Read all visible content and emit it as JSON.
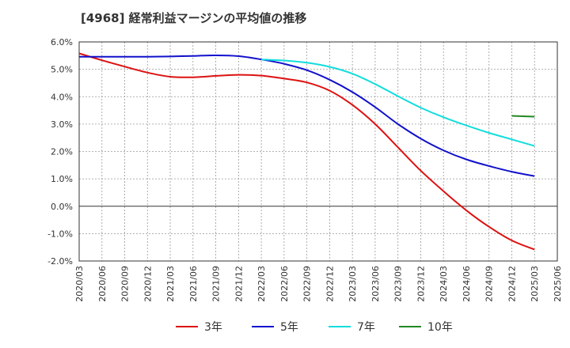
{
  "chart_data": {
    "type": "line",
    "title": "[4968]  経常利益マージンの平均値の推移",
    "xlabel": "",
    "ylabel": "",
    "ylim": [
      -2.0,
      6.0
    ],
    "y_ticks": [
      "6.0%",
      "5.0%",
      "4.0%",
      "3.0%",
      "2.0%",
      "1.0%",
      "0.0%",
      "-1.0%",
      "-2.0%"
    ],
    "y_tick_values": [
      6,
      5,
      4,
      3,
      2,
      1,
      0,
      -1,
      -2
    ],
    "x_ticks": [
      "2020/03",
      "2020/06",
      "2020/09",
      "2020/12",
      "2021/03",
      "2021/06",
      "2021/09",
      "2021/12",
      "2022/03",
      "2022/06",
      "2022/09",
      "2022/12",
      "2023/03",
      "2023/06",
      "2023/09",
      "2023/12",
      "2024/03",
      "2024/06",
      "2024/09",
      "2024/12",
      "2025/03",
      "2025/06"
    ],
    "grid": true,
    "legend_position": "bottom",
    "series": [
      {
        "name": "3年",
        "color": "#dd1111",
        "x": [
          "2020/03",
          "2020/06",
          "2020/09",
          "2020/12",
          "2021/03",
          "2021/06",
          "2021/09",
          "2021/12",
          "2022/03",
          "2022/06",
          "2022/09",
          "2022/12",
          "2023/03",
          "2023/06",
          "2023/09",
          "2023/12",
          "2024/03",
          "2024/06",
          "2024/09",
          "2024/12",
          "2025/03"
        ],
        "values": [
          5.58,
          5.33,
          5.1,
          4.88,
          4.73,
          4.71,
          4.76,
          4.8,
          4.77,
          4.66,
          4.52,
          4.22,
          3.7,
          3.0,
          2.15,
          1.3,
          0.55,
          -0.15,
          -0.75,
          -1.25,
          -1.58
        ]
      },
      {
        "name": "5年",
        "color": "#1111cc",
        "x": [
          "2020/03",
          "2020/06",
          "2020/09",
          "2020/12",
          "2021/03",
          "2021/06",
          "2021/09",
          "2021/12",
          "2022/03",
          "2022/06",
          "2022/09",
          "2022/12",
          "2023/03",
          "2023/06",
          "2023/09",
          "2023/12",
          "2024/03",
          "2024/06",
          "2024/09",
          "2024/12",
          "2025/03"
        ],
        "values": [
          5.46,
          5.46,
          5.46,
          5.46,
          5.47,
          5.49,
          5.51,
          5.48,
          5.36,
          5.2,
          4.97,
          4.62,
          4.17,
          3.62,
          3.0,
          2.47,
          2.04,
          1.71,
          1.47,
          1.26,
          1.1
        ]
      },
      {
        "name": "7年",
        "color": "#11dddd",
        "x": [
          "2022/03",
          "2022/06",
          "2022/09",
          "2022/12",
          "2023/03",
          "2023/06",
          "2023/09",
          "2023/12",
          "2024/03",
          "2024/06",
          "2024/09",
          "2024/12",
          "2025/03"
        ],
        "values": [
          5.36,
          5.32,
          5.24,
          5.09,
          4.84,
          4.46,
          4.02,
          3.6,
          3.25,
          2.95,
          2.68,
          2.44,
          2.2
        ]
      },
      {
        "name": "10年",
        "color": "#228822",
        "x": [
          "2024/12",
          "2025/03"
        ],
        "values": [
          3.3,
          3.27
        ]
      }
    ]
  }
}
